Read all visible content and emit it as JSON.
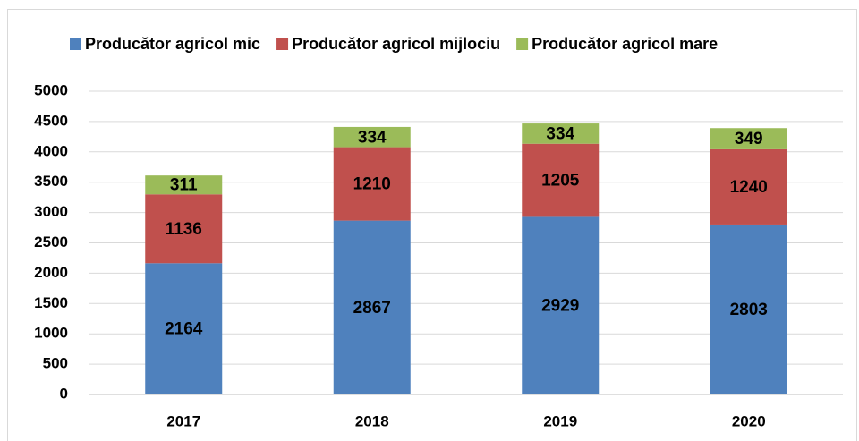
{
  "chart_data": {
    "type": "stacked_bar",
    "categories": [
      "2017",
      "2018",
      "2019",
      "2020"
    ],
    "series": [
      {
        "name": "Producător agricol mic",
        "color": "#4f81bd",
        "values": [
          2164,
          2867,
          2929,
          2803
        ]
      },
      {
        "name": "Producător agricol mijlociu",
        "color": "#c0504d",
        "values": [
          1136,
          1210,
          1205,
          1240
        ]
      },
      {
        "name": "Producător agricol mare",
        "color": "#9bbb59",
        "values": [
          311,
          334,
          334,
          349
        ]
      }
    ],
    "ylim": [
      0,
      5000
    ],
    "yticks": [
      0,
      500,
      1000,
      1500,
      2000,
      2500,
      3000,
      3500,
      4000,
      4500,
      5000
    ],
    "grid": true,
    "legend": "top"
  }
}
